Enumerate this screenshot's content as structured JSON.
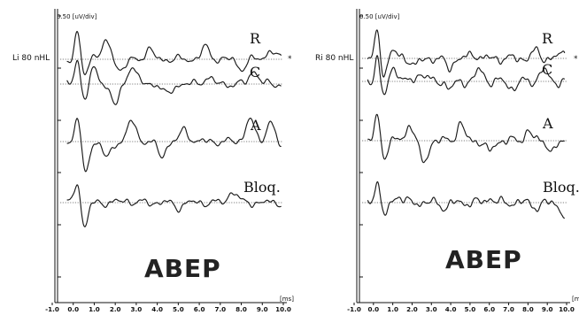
{
  "chart_data": [
    {
      "type": "line",
      "panel_label": "ABEP",
      "amplitude_scale": "0.50 [uV/div]",
      "stimulus_label": "Li 80 nHL",
      "x_unit": "[ms]",
      "x_ticks": [
        "-1.0",
        "0.0",
        "1.0",
        "2.0",
        "3.0",
        "4.0",
        "5.0",
        "6.0",
        "7.0",
        "8.0",
        "9.0",
        "10.0"
      ],
      "xlim": [
        -1.0,
        10.0
      ],
      "marker": "*",
      "series": [
        {
          "name": "R",
          "peaks": [
            [
              1.0,
              0.1
            ],
            [
              1.6,
              0.35
            ],
            [
              2.3,
              -0.25
            ],
            [
              3.6,
              0.2
            ],
            [
              6.3,
              0.25
            ],
            [
              8.0,
              -0.2
            ],
            [
              9.4,
              0.2
            ]
          ]
        },
        {
          "name": "C",
          "peaks": [
            [
              1.0,
              0.3
            ],
            [
              2.0,
              -0.45
            ],
            [
              2.8,
              0.4
            ],
            [
              4.5,
              -0.25
            ],
            [
              6.4,
              0.15
            ],
            [
              8.6,
              0.3
            ]
          ]
        },
        {
          "name": "A",
          "peaks": [
            [
              0.6,
              -0.3
            ],
            [
              1.6,
              -0.35
            ],
            [
              2.8,
              0.45
            ],
            [
              4.2,
              -0.3
            ],
            [
              5.3,
              0.25
            ],
            [
              8.4,
              0.5
            ],
            [
              9.4,
              0.45
            ],
            [
              9.9,
              -0.15
            ]
          ]
        },
        {
          "name": "Bloq.",
          "peaks": [
            [
              0.5,
              -0.2
            ],
            [
              2.5,
              0.05
            ],
            [
              5.0,
              -0.1
            ],
            [
              7.6,
              0.25
            ]
          ]
        }
      ]
    },
    {
      "type": "line",
      "panel_label": "ABEP",
      "amplitude_scale": "0.50 [uV/div]",
      "stimulus_label": "Ri 80 nHL",
      "x_unit": "[m",
      "x_ticks": [
        "-1.0",
        "0.0",
        "1.0",
        "2.0",
        "3.0",
        "4.0",
        "5.0",
        "6.0",
        "7.0",
        "8.0",
        "9.0",
        "10.0"
      ],
      "xlim": [
        -1.0,
        10.0
      ],
      "marker": "*",
      "series": [
        {
          "name": "R",
          "peaks": [
            [
              1.0,
              0.15
            ],
            [
              2.2,
              -0.15
            ],
            [
              3.9,
              -0.2
            ],
            [
              5.2,
              0.1
            ],
            [
              8.4,
              0.15
            ],
            [
              9.8,
              0.1
            ]
          ]
        },
        {
          "name": "C",
          "peaks": [
            [
              1.1,
              0.3
            ],
            [
              2.5,
              0.2
            ],
            [
              4.0,
              -0.15
            ],
            [
              5.5,
              0.25
            ],
            [
              7.2,
              -0.15
            ],
            [
              8.8,
              0.25
            ]
          ]
        },
        {
          "name": "A",
          "peaks": [
            [
              1.9,
              0.35
            ],
            [
              2.6,
              -0.5
            ],
            [
              4.5,
              0.35
            ],
            [
              6.0,
              -0.25
            ],
            [
              8.0,
              0.2
            ],
            [
              9.3,
              -0.25
            ]
          ]
        },
        {
          "name": "Bloq.",
          "peaks": [
            [
              1.3,
              0.15
            ],
            [
              3.7,
              -0.1
            ],
            [
              6.0,
              0.1
            ],
            [
              8.5,
              -0.1
            ],
            [
              9.9,
              -0.3
            ]
          ]
        }
      ]
    }
  ]
}
